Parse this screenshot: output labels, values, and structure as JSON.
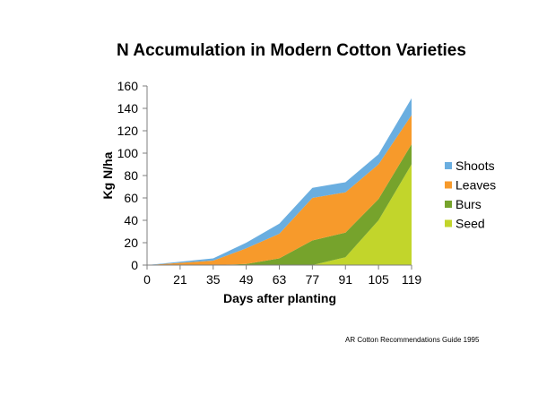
{
  "chart_data": {
    "type": "area",
    "stacked": true,
    "title": "N Accumulation in Modern Cotton Varieties",
    "xlabel": "Days after planting",
    "ylabel": "Kg N/ha",
    "ylim": [
      0,
      160
    ],
    "yticks": [
      0,
      20,
      40,
      60,
      80,
      100,
      120,
      140,
      160
    ],
    "categories": [
      "0",
      "21",
      "35",
      "49",
      "63",
      "77",
      "91",
      "105",
      "119"
    ],
    "series": [
      {
        "name": "Seed",
        "color": "#c2d52b",
        "values": [
          0,
          0,
          0,
          0,
          0,
          0,
          7,
          40,
          90
        ]
      },
      {
        "name": "Burs",
        "color": "#76a32c",
        "values": [
          0,
          0,
          0,
          1,
          6,
          22,
          22,
          19,
          18
        ]
      },
      {
        "name": "Leaves",
        "color": "#f79a2b",
        "values": [
          0,
          2,
          4,
          14,
          22,
          38,
          36,
          31,
          26
        ]
      },
      {
        "name": "Shoots",
        "color": "#6aaee0",
        "values": [
          0,
          1,
          2,
          5,
          9,
          9,
          9,
          9,
          15
        ]
      }
    ],
    "legend": [
      "Shoots",
      "Leaves",
      "Burs",
      "Seed"
    ],
    "legend_position": "right"
  },
  "source_note": "AR Cotton Recommendations Guide  1995"
}
